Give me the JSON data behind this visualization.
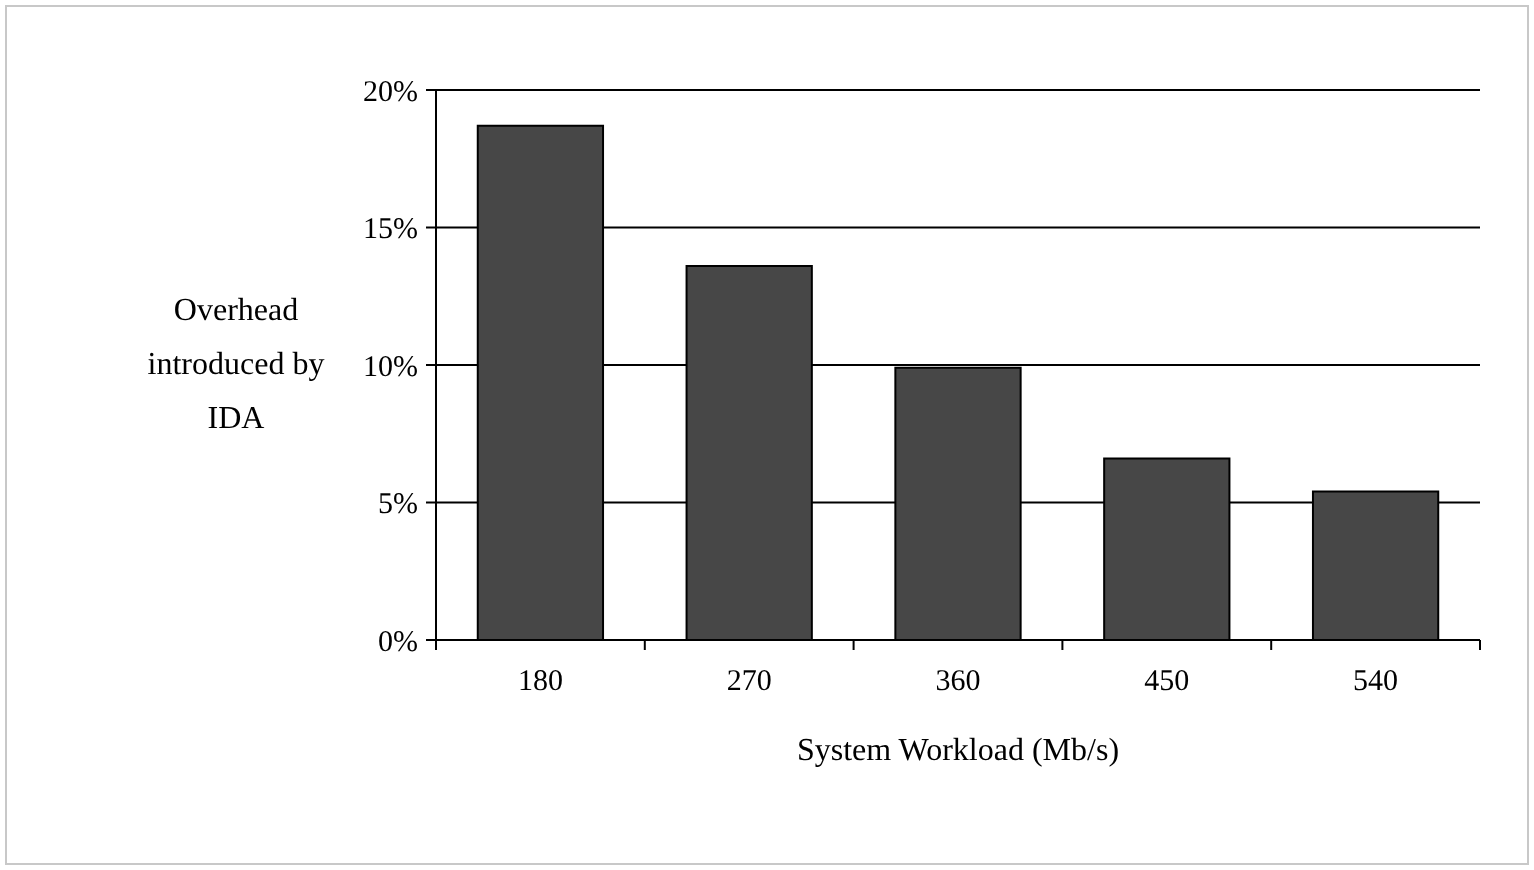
{
  "chart_data": {
    "type": "bar",
    "xlabel": "System Workload (Mb/s)",
    "ylabel": "Overhead introduced by IDA",
    "categories": [
      "180",
      "270",
      "360",
      "450",
      "540"
    ],
    "values": [
      18.7,
      13.6,
      9.9,
      6.6,
      5.4
    ],
    "color": "#474747",
    "ylim": [
      0,
      20
    ],
    "yticks": [
      {
        "value": 0,
        "label": "0%"
      },
      {
        "value": 5,
        "label": "5%"
      },
      {
        "value": 10,
        "label": "10%"
      },
      {
        "value": 15,
        "label": "15%"
      },
      {
        "value": 20,
        "label": "20%"
      }
    ],
    "grid": "y"
  }
}
